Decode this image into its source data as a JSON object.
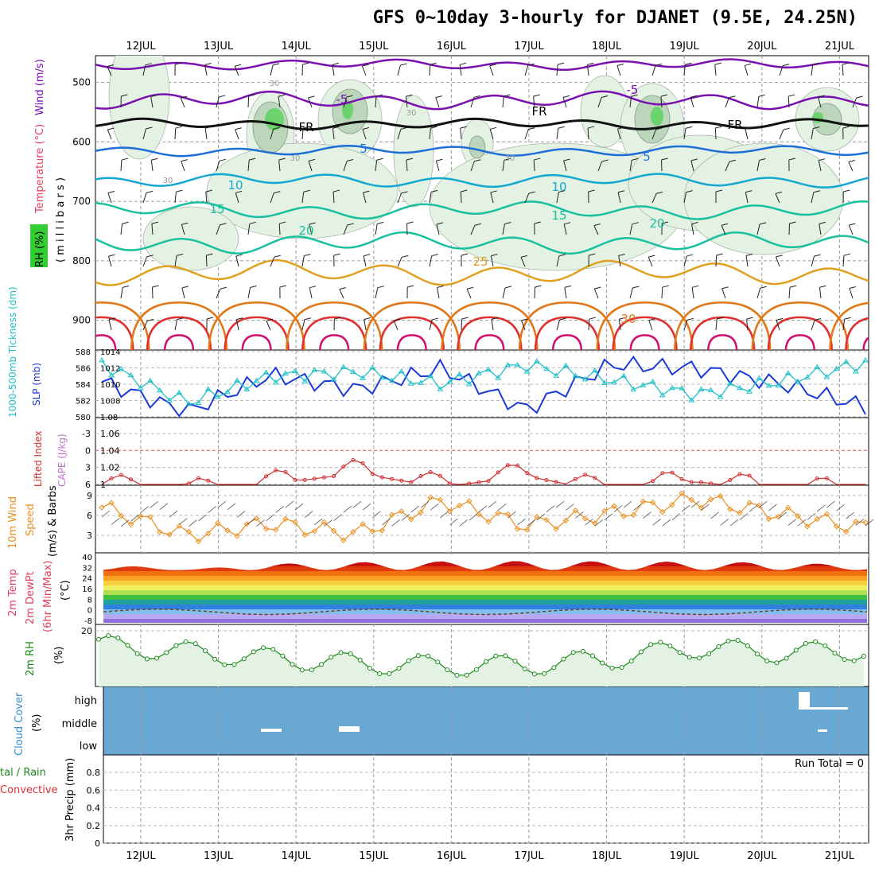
{
  "title": "GFS 0~10day 3-hourly for DJANET (9.5E, 24.25N)",
  "dates": [
    "12JUL",
    "13JUL",
    "14JUL",
    "15JUL",
    "16JUL",
    "17JUL",
    "18JUL",
    "19JUL",
    "20JUL",
    "21JUL"
  ],
  "colors": {
    "humidity_fill": "#e4f2e4",
    "humidity_mid": "#bcd6bc",
    "humidity_high": "#6dd46d",
    "freezing": "#111111",
    "temp_cold": "#7a10b0",
    "temp_cool": "#1e6ed8",
    "temp_mild": "#14a8d0",
    "temp_warm": "#18c0a0",
    "temp_hot": "#e0a020",
    "temp_hotter": "#e07818",
    "temp_hottest": "#e03030",
    "slp": "#1c3ad8",
    "thickness": "#20c0c8",
    "lifted_index": "#d03030",
    "wind_speed": "#e89020",
    "wind_barb": "#333333",
    "rh2m": "#1a8a1a",
    "cloud_bg": "#6aa8d4",
    "cloud_box": "#ffffff"
  },
  "panels": {
    "upper_air": {
      "left_labels": {
        "rh": "RH (%)",
        "temperature": "Temperature (°C)",
        "wind": "Wind (m/s)",
        "pressure": "( m i l l i b a r s )"
      },
      "y_ticks": [
        "500",
        "600",
        "700",
        "800",
        "900"
      ],
      "contour_labels": [
        "-5",
        "-5",
        "FR",
        "FR",
        "FR",
        "5",
        "5",
        "10",
        "10",
        "15",
        "15",
        "20",
        "20",
        "25",
        "30",
        "30",
        "30",
        "30",
        "30",
        "30"
      ]
    },
    "pressure_thickness": {
      "left_labels": {
        "thickness": "1000-500mb Tickness (dm)",
        "slp": "SLP (mb)"
      },
      "left_ticks": [
        "588",
        "586",
        "584",
        "582",
        "580"
      ],
      "right_ticks": [
        "1014",
        "1012",
        "1010",
        "1008",
        "1.08"
      ]
    },
    "instability": {
      "left_labels": {
        "lifted_index": "Lifted Index",
        "cape": "CAPE (J/kg)"
      },
      "left_ticks": [
        "-3",
        "0",
        "3",
        "6"
      ],
      "right_ticks": [
        "1.06",
        "1.04",
        "1.02",
        "1"
      ]
    },
    "wind10m": {
      "left_labels": {
        "title": "10m Wind",
        "speed": "Speed",
        "barbs": "(m/s) & Barbs"
      },
      "right_ticks": [
        "9",
        "6",
        "3"
      ]
    },
    "temperature2m": {
      "left_labels": {
        "temp": "2m Temp",
        "dewpt": "2m DewPt",
        "minmax": "(6hr Min/Max)",
        "unit": "(°C)"
      },
      "right_ticks": [
        "40",
        "32",
        "24",
        "16",
        "8",
        "0",
        "-8"
      ]
    },
    "rh2m": {
      "left_labels": {
        "title": "2m RH",
        "unit": "(%)"
      },
      "right_ticks": [
        "20"
      ]
    },
    "cloud": {
      "left_labels": {
        "title": "Cloud Cover",
        "unit": "(%)"
      },
      "levels": [
        "high",
        "middle",
        "low"
      ]
    },
    "precip": {
      "left_labels": {
        "total": "tal / Rain",
        "convective": "Convective",
        "title": "3hr Precip (mm)"
      },
      "right_ticks": [
        "0.8",
        "0.6",
        "0.4",
        "0.2",
        "0"
      ],
      "run_total": "Run Total = 0"
    }
  },
  "chart_data": [
    {
      "type": "line",
      "title": "Sea level pressure (mb)",
      "x": [
        "12JUL",
        "13JUL",
        "14JUL",
        "15JUL",
        "16JUL",
        "17JUL",
        "18JUL",
        "19JUL",
        "20JUL",
        "21JUL"
      ],
      "series": [
        {
          "name": "SLP (mb)",
          "values": [
            1011.2,
            1008.1,
            1011.9,
            1010.4,
            1012.6,
            1008.3,
            1013.0,
            1012.6,
            1011.0,
            1008.6
          ]
        }
      ],
      "ylim": [
        1008,
        1014
      ]
    },
    {
      "type": "line",
      "title": "1000-500mb Tickness (dm)",
      "x": [
        "12JUL",
        "13JUL",
        "14JUL",
        "15JUL",
        "16JUL",
        "17JUL",
        "18JUL",
        "19JUL",
        "20JUL",
        "21JUL"
      ],
      "series": [
        {
          "name": "1000-500mb Tickness (dm)",
          "values": [
            586.6,
            581.5,
            585.0,
            585.6,
            584.0,
            586.5,
            584.5,
            582.6,
            584.3,
            586.8
          ]
        }
      ],
      "ylim": [
        580,
        588
      ]
    },
    {
      "type": "line",
      "title": "Lifted Index",
      "x": [
        "12JUL",
        "13JUL",
        "14JUL",
        "15JUL",
        "16JUL",
        "17JUL",
        "18JUL",
        "19JUL",
        "20JUL",
        "21JUL"
      ],
      "series": [
        {
          "name": "Lifted Index",
          "values": [
            5.0,
            6.0,
            4.5,
            2.5,
            5.0,
            3.0,
            6.0,
            4.0,
            5.8,
            5.5
          ]
        }
      ],
      "ylim": [
        -6,
        6
      ]
    },
    {
      "type": "line",
      "title": "10m Wind Speed (m/s)",
      "x": [
        "12JUL",
        "13JUL",
        "14JUL",
        "15JUL",
        "16JUL",
        "17JUL",
        "18JUL",
        "19JUL",
        "20JUL",
        "21JUL"
      ],
      "series": [
        {
          "name": "Speed",
          "values": [
            7.2,
            3.0,
            4.8,
            3.2,
            8.2,
            4.5,
            6.3,
            8.5,
            6.2,
            4.1
          ]
        }
      ],
      "ylim": [
        0,
        10
      ]
    },
    {
      "type": "line",
      "title": "2m Temp (°C)",
      "x": [
        "12JUL",
        "13JUL",
        "14JUL",
        "15JUL",
        "16JUL",
        "17JUL",
        "18JUL",
        "19JUL",
        "20JUL",
        "21JUL"
      ],
      "series": [
        {
          "name": "2m Temp",
          "values": [
            35.0,
            29.0,
            36.0,
            38.0,
            39.0,
            39.5,
            39.0,
            38.5,
            37.5,
            34.0
          ]
        },
        {
          "name": "2m DewPt",
          "values": [
            1.0,
            0.0,
            -1.0,
            -2.0,
            -3.0,
            -2.0,
            -1.0,
            -2.0,
            -1.0,
            0.0
          ]
        }
      ],
      "ylim": [
        -8,
        40
      ]
    },
    {
      "type": "line",
      "title": "2m RH (%)",
      "x": [
        "12JUL",
        "13JUL",
        "14JUL",
        "15JUL",
        "16JUL",
        "17JUL",
        "18JUL",
        "19JUL",
        "20JUL",
        "21JUL"
      ],
      "series": [
        {
          "name": "2m RH",
          "values": [
            21.0,
            18.5,
            16.0,
            14.0,
            13.0,
            13.2,
            15.5,
            20.0,
            18.0,
            19.0
          ]
        }
      ],
      "ylim": [
        0,
        24
      ]
    },
    {
      "type": "area",
      "title": "3hr Precip (mm)",
      "x": [
        "12JUL",
        "13JUL",
        "14JUL",
        "15JUL",
        "16JUL",
        "17JUL",
        "18JUL",
        "19JUL",
        "20JUL",
        "21JUL"
      ],
      "series": [
        {
          "name": "Total / Rain",
          "values": [
            0,
            0,
            0,
            0,
            0,
            0,
            0,
            0,
            0,
            0
          ]
        },
        {
          "name": "Convective",
          "values": [
            0,
            0,
            0,
            0,
            0,
            0,
            0,
            0,
            0,
            0
          ]
        }
      ],
      "ylim": [
        0,
        0.9
      ]
    }
  ]
}
